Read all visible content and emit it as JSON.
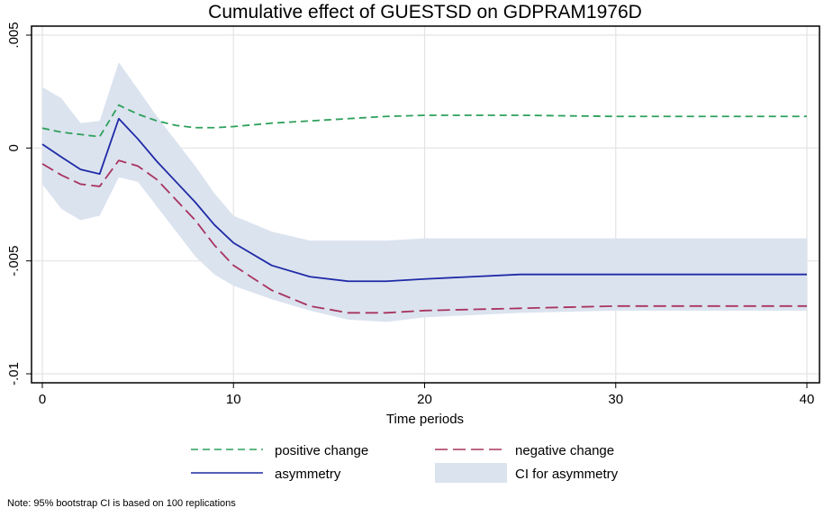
{
  "chart_data": {
    "type": "line",
    "title": "Cumulative effect of GUESTSD on GDPRAM1976D",
    "xlabel": "Time periods",
    "ylabel": "",
    "xlim": [
      0,
      40
    ],
    "ylim": [
      -0.01,
      0.005
    ],
    "xticks": [
      0,
      10,
      20,
      30,
      40
    ],
    "xtick_labels": [
      "0",
      "10",
      "20",
      "30",
      "40"
    ],
    "yticks": [
      0.005,
      0,
      -0.005,
      -0.01
    ],
    "ytick_labels": [
      ".005",
      "0",
      "-.005",
      "-.01"
    ],
    "grid": true,
    "x": [
      0,
      1,
      2,
      3,
      4,
      5,
      6,
      7,
      8,
      9,
      10,
      12,
      14,
      16,
      18,
      20,
      25,
      30,
      35,
      40
    ],
    "series": [
      {
        "name": "positive change",
        "color": "#2ca05a",
        "style": "dashed",
        "values": [
          0.00088,
          0.0007,
          0.0006,
          0.0005,
          0.0019,
          0.0015,
          0.0012,
          0.001,
          0.0009,
          0.0009,
          0.00095,
          0.0011,
          0.0012,
          0.0013,
          0.0014,
          0.00145,
          0.00145,
          0.0014,
          0.0014,
          0.0014
        ]
      },
      {
        "name": "negative change",
        "color": "#a8345f",
        "style": "longdash",
        "values": [
          -0.0007,
          -0.0012,
          -0.0016,
          -0.0017,
          -0.00055,
          -0.0008,
          -0.0014,
          -0.0023,
          -0.0032,
          -0.0043,
          -0.0052,
          -0.0063,
          -0.007,
          -0.0073,
          -0.0073,
          -0.0072,
          -0.0071,
          -0.007,
          -0.007,
          -0.007
        ]
      },
      {
        "name": "asymmetry",
        "color": "#1f2aa6",
        "style": "solid",
        "values": [
          0.00017,
          -0.0004,
          -0.00095,
          -0.00115,
          0.0013,
          0.0004,
          -0.0006,
          -0.0015,
          -0.0024,
          -0.0034,
          -0.0042,
          -0.0052,
          -0.0057,
          -0.0059,
          -0.0059,
          -0.0058,
          -0.0056,
          -0.0056,
          -0.0056,
          -0.0056
        ]
      }
    ],
    "ci": {
      "name": "CI for asymmetry",
      "color": "#dbe3ef",
      "upper": [
        0.0027,
        0.0022,
        0.0011,
        0.0012,
        0.0038,
        0.0026,
        0.0014,
        0.0003,
        -0.0008,
        -0.002,
        -0.003,
        -0.0037,
        -0.0041,
        -0.0041,
        -0.0041,
        -0.004,
        -0.004,
        -0.004,
        -0.004,
        -0.004
      ],
      "lower": [
        -0.0016,
        -0.0027,
        -0.0032,
        -0.003,
        -0.0013,
        -0.0015,
        -0.0026,
        -0.0037,
        -0.0048,
        -0.0056,
        -0.0061,
        -0.0067,
        -0.0072,
        -0.0076,
        -0.0077,
        -0.0075,
        -0.0073,
        -0.0072,
        -0.0072,
        -0.0072
      ]
    },
    "legend_position": "bottom",
    "note": "Note: 95% bootstrap CI is based on 100 replications"
  }
}
